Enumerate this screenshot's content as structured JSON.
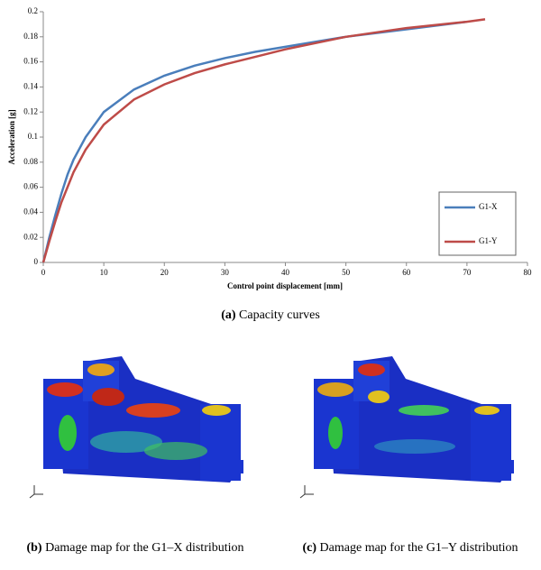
{
  "chart_data": {
    "type": "line",
    "x_label": "Control point displacement [mm]",
    "y_label": "Acceleration [g]",
    "x": [
      0,
      1,
      2,
      3,
      4,
      5,
      7,
      10,
      15,
      20,
      25,
      30,
      35,
      40,
      50,
      60,
      70,
      73
    ],
    "series": [
      {
        "name": "G1-X",
        "color": "#4a7ebb",
        "values": [
          0,
          0.02,
          0.038,
          0.055,
          0.07,
          0.082,
          0.1,
          0.12,
          0.138,
          0.149,
          0.157,
          0.163,
          0.168,
          0.172,
          0.18,
          0.186,
          0.192,
          null
        ]
      },
      {
        "name": "G1-Y",
        "color": "#be4b48",
        "values": [
          0,
          0.017,
          0.033,
          0.048,
          0.06,
          0.072,
          0.09,
          0.11,
          0.13,
          0.142,
          0.151,
          0.158,
          0.164,
          0.17,
          0.18,
          0.187,
          0.192,
          0.194
        ]
      }
    ],
    "xlim": [
      0,
      80
    ],
    "xticks": [
      0,
      10,
      20,
      30,
      40,
      50,
      60,
      70,
      80
    ],
    "ylim": [
      0,
      0.2
    ],
    "yticks": [
      0,
      0.02,
      0.04,
      0.06,
      0.08,
      0.1,
      0.12,
      0.14,
      0.16,
      0.18,
      0.2
    ],
    "legend": "lower right"
  },
  "captions": [
    {
      "label": "(a)",
      "text": "Capacity curves"
    },
    {
      "label": "(b)",
      "text": "Damage map for the G1–X distribution"
    },
    {
      "label": "(c)",
      "text": "Damage map for the G1–Y distribution"
    }
  ]
}
